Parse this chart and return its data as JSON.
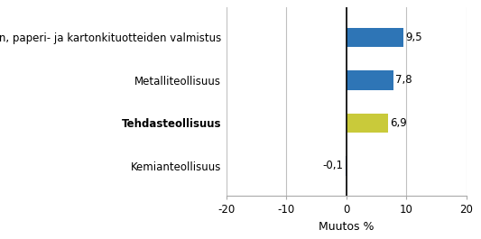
{
  "categories": [
    "Paperin, paperi- ja kartonkituotteiden valmistus",
    "Metalliteollisuus",
    "Tehdasteollisuus",
    "Kemianteollisuus"
  ],
  "values": [
    9.5,
    7.8,
    6.9,
    -0.1
  ],
  "bar_colors": [
    "#2e75b6",
    "#2e75b6",
    "#c9ca3a",
    "#2e75b6"
  ],
  "bold_labels": [
    false,
    false,
    true,
    false
  ],
  "value_labels": [
    "9,5",
    "7,8",
    "6,9",
    "-0,1"
  ],
  "xlabel": "Muutos %",
  "xlim": [
    -20,
    20
  ],
  "xticks": [
    -20,
    -10,
    0,
    10,
    20
  ],
  "bar_height": 0.45,
  "background_color": "#ffffff",
  "grid_color": "#c0c0c0",
  "value_fontsize": 8.5,
  "label_fontsize": 8.5,
  "xlabel_fontsize": 9
}
